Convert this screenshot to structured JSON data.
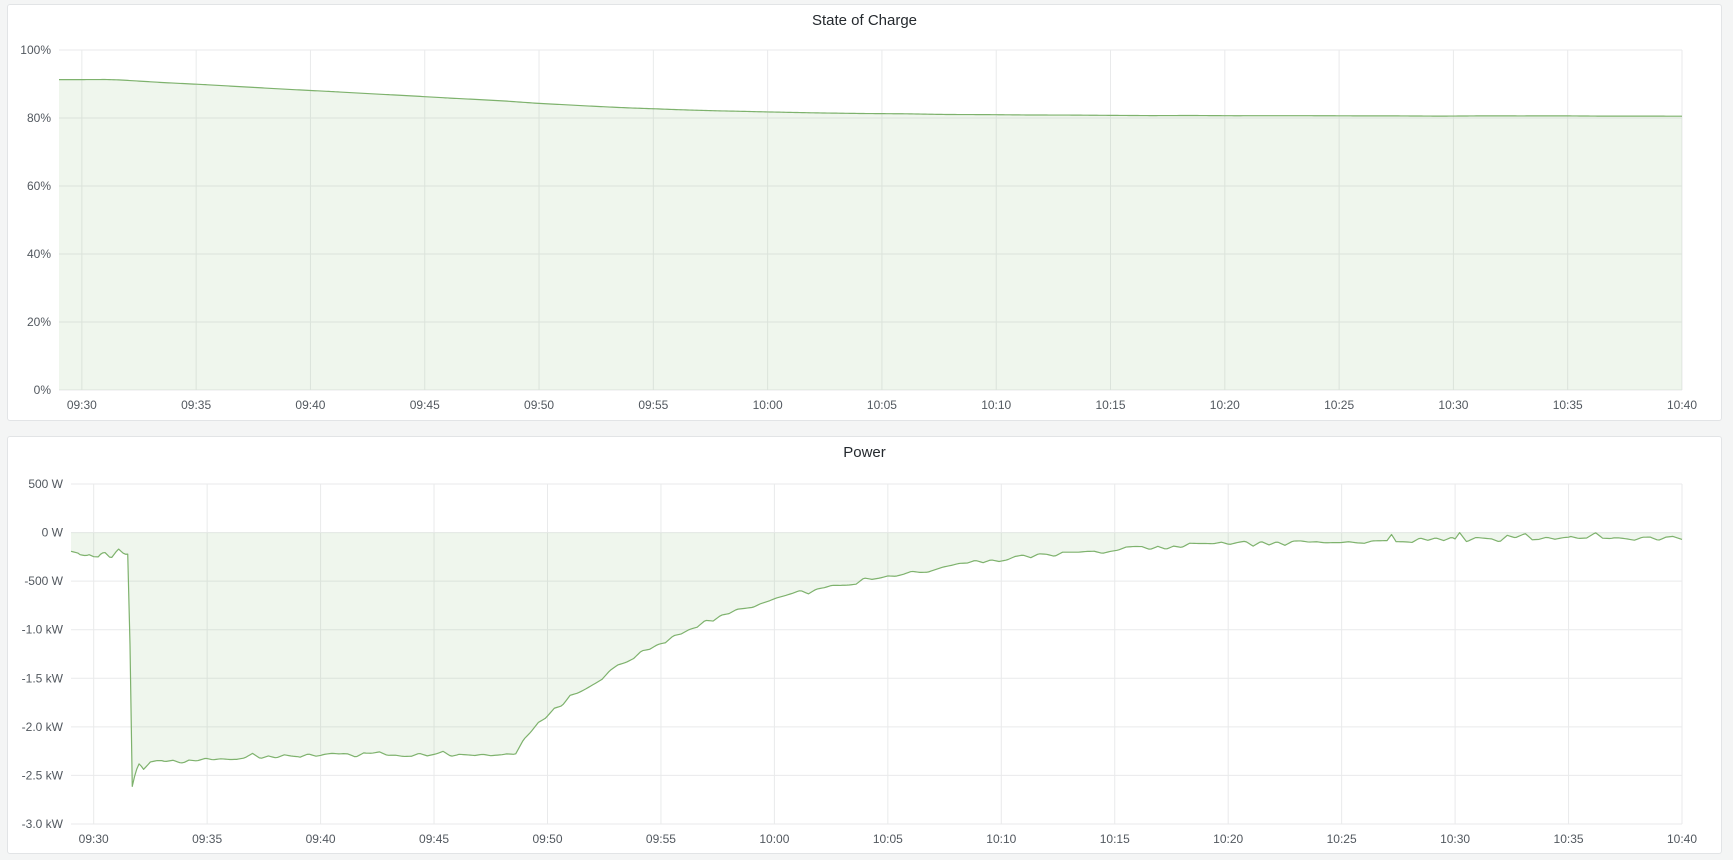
{
  "panels": [
    {
      "title": "State of Charge"
    },
    {
      "title": "Power"
    }
  ],
  "time_axis": {
    "tick_labels": [
      "09:30",
      "09:35",
      "09:40",
      "09:45",
      "09:50",
      "09:55",
      "10:00",
      "10:05",
      "10:10",
      "10:15",
      "10:20",
      "10:25",
      "10:30",
      "10:35",
      "10:40"
    ]
  },
  "colors": {
    "line_green": "#7eb26d",
    "fill_green": "rgba(126,178,109,0.12)",
    "grid": "#e9eaeb",
    "axis_text": "#52585f",
    "panel_bg": "#ffffff",
    "page_bg": "#f4f5f5"
  },
  "chart_data": [
    {
      "type": "area",
      "title": "State of Charge",
      "unit": "percent",
      "xlim_minutes": [
        -1,
        70
      ],
      "ylim": [
        0,
        100
      ],
      "grid": true,
      "legend": "none",
      "yticks": [
        {
          "value": 100,
          "label": "100%"
        },
        {
          "value": 80,
          "label": "80%"
        },
        {
          "value": 60,
          "label": "60%"
        },
        {
          "value": 40,
          "label": "40%"
        },
        {
          "value": 20,
          "label": "20%"
        },
        {
          "value": 0,
          "label": "0%"
        }
      ],
      "xticks": [
        {
          "minute": 0,
          "label": "09:30"
        },
        {
          "minute": 5,
          "label": "09:35"
        },
        {
          "minute": 10,
          "label": "09:40"
        },
        {
          "minute": 15,
          "label": "09:45"
        },
        {
          "minute": 20,
          "label": "09:50"
        },
        {
          "minute": 25,
          "label": "09:55"
        },
        {
          "minute": 30,
          "label": "10:00"
        },
        {
          "minute": 35,
          "label": "10:05"
        },
        {
          "minute": 40,
          "label": "10:10"
        },
        {
          "minute": 45,
          "label": "10:15"
        },
        {
          "minute": 50,
          "label": "10:20"
        },
        {
          "minute": 55,
          "label": "10:25"
        },
        {
          "minute": 60,
          "label": "10:30"
        },
        {
          "minute": 65,
          "label": "10:35"
        },
        {
          "minute": 70,
          "label": "10:40"
        }
      ],
      "series": [
        {
          "name": "State of Charge",
          "noise": {
            "amp": 0.05,
            "cell": 1.8
          },
          "points": [
            [
              -1,
              91.32
            ],
            [
              0,
              91.32
            ],
            [
              1,
              91.3
            ],
            [
              1.5,
              91.2
            ],
            [
              3,
              90.65
            ],
            [
              5,
              89.92
            ],
            [
              7,
              89.19
            ],
            [
              9,
              88.46
            ],
            [
              11,
              87.74
            ],
            [
              13,
              87.01
            ],
            [
              15,
              86.28
            ],
            [
              17,
              85.55
            ],
            [
              18.5,
              85.0
            ],
            [
              20,
              84.32
            ],
            [
              22,
              83.57
            ],
            [
              24,
              82.97
            ],
            [
              26,
              82.48
            ],
            [
              28,
              82.1
            ],
            [
              30,
              81.79
            ],
            [
              32,
              81.54
            ],
            [
              34,
              81.35
            ],
            [
              36,
              81.19
            ],
            [
              38,
              81.06
            ],
            [
              40,
              80.96
            ],
            [
              43,
              80.84
            ],
            [
              46,
              80.76
            ],
            [
              50,
              80.68
            ],
            [
              55,
              80.63
            ],
            [
              60,
              80.59
            ],
            [
              65,
              80.58
            ],
            [
              70,
              80.56
            ]
          ]
        }
      ]
    },
    {
      "type": "area",
      "title": "Power",
      "unit": "watt",
      "xlim_minutes": [
        -1,
        70
      ],
      "ylim": [
        -3000,
        500
      ],
      "grid": true,
      "legend": "none",
      "yticks": [
        {
          "value": 500,
          "label": "500 W"
        },
        {
          "value": 0,
          "label": "0 W"
        },
        {
          "value": -500,
          "label": "-500 W"
        },
        {
          "value": -1000,
          "label": "-1.0 kW"
        },
        {
          "value": -1500,
          "label": "-1.5 kW"
        },
        {
          "value": -2000,
          "label": "-2.0 kW"
        },
        {
          "value": -2500,
          "label": "-2.5 kW"
        },
        {
          "value": -3000,
          "label": "-3.0 kW"
        }
      ],
      "xticks": [
        {
          "minute": 0,
          "label": "09:30"
        },
        {
          "minute": 5,
          "label": "09:35"
        },
        {
          "minute": 10,
          "label": "09:40"
        },
        {
          "minute": 15,
          "label": "09:45"
        },
        {
          "minute": 20,
          "label": "09:50"
        },
        {
          "minute": 25,
          "label": "09:55"
        },
        {
          "minute": 30,
          "label": "10:00"
        },
        {
          "minute": 35,
          "label": "10:05"
        },
        {
          "minute": 40,
          "label": "10:10"
        },
        {
          "minute": 45,
          "label": "10:15"
        },
        {
          "minute": 50,
          "label": "10:20"
        },
        {
          "minute": 55,
          "label": "10:25"
        },
        {
          "minute": 60,
          "label": "10:30"
        },
        {
          "minute": 65,
          "label": "10:35"
        },
        {
          "minute": 70,
          "label": "10:40"
        }
      ],
      "series": [
        {
          "name": "Power",
          "noise": {
            "amp": 28,
            "cell": 0.35
          },
          "points": [
            [
              -1,
              -200
            ],
            [
              -0.6,
              -230
            ],
            [
              -0.2,
              -210
            ],
            [
              0.2,
              -260
            ],
            [
              0.5,
              -215
            ],
            [
              0.8,
              -250
            ],
            [
              1.1,
              -185
            ],
            [
              1.35,
              -225
            ],
            [
              1.55,
              -215
            ],
            [
              1.68,
              -2620
            ],
            [
              1.85,
              -2450
            ],
            [
              2.0,
              -2380
            ],
            [
              2.2,
              -2440
            ],
            [
              2.5,
              -2360
            ],
            [
              3,
              -2340
            ],
            [
              4,
              -2360
            ],
            [
              5,
              -2320
            ],
            [
              6,
              -2330
            ],
            [
              7,
              -2300
            ],
            [
              8,
              -2310
            ],
            [
              9,
              -2290
            ],
            [
              10,
              -2300
            ],
            [
              11,
              -2280
            ],
            [
              12,
              -2290
            ],
            [
              13,
              -2280
            ],
            [
              14,
              -2290
            ],
            [
              15,
              -2270
            ],
            [
              16,
              -2280
            ],
            [
              17,
              -2270
            ],
            [
              18,
              -2270
            ],
            [
              18.6,
              -2255
            ],
            [
              19,
              -2120
            ],
            [
              20,
              -1870
            ],
            [
              21,
              -1700
            ],
            [
              22,
              -1550
            ],
            [
              23,
              -1400
            ],
            [
              24,
              -1260
            ],
            [
              25,
              -1130
            ],
            [
              26,
              -1020
            ],
            [
              27,
              -910
            ],
            [
              28,
              -820
            ],
            [
              29,
              -750
            ],
            [
              30,
              -690
            ],
            [
              31,
              -630
            ],
            [
              32,
              -580
            ],
            [
              33,
              -530
            ],
            [
              34,
              -490
            ],
            [
              35,
              -450
            ],
            [
              36,
              -410
            ],
            [
              37,
              -375
            ],
            [
              38,
              -340
            ],
            [
              39,
              -305
            ],
            [
              40,
              -275
            ],
            [
              41,
              -250
            ],
            [
              42,
              -230
            ],
            [
              43,
              -210
            ],
            [
              44,
              -195
            ],
            [
              45,
              -180
            ],
            [
              46,
              -165
            ],
            [
              47,
              -150
            ],
            [
              48,
              -140
            ],
            [
              49,
              -130
            ],
            [
              50,
              -120
            ],
            [
              51,
              -115
            ],
            [
              52,
              -110
            ],
            [
              53,
              -105
            ],
            [
              54,
              -100
            ],
            [
              55,
              -95
            ],
            [
              56,
              -90
            ],
            [
              57,
              -85
            ],
            [
              57.2,
              -20
            ],
            [
              57.4,
              -90
            ],
            [
              58,
              -80
            ],
            [
              59,
              -75
            ],
            [
              60,
              -70
            ],
            [
              60.2,
              20
            ],
            [
              60.5,
              -80
            ],
            [
              61,
              -65
            ],
            [
              62,
              -70
            ],
            [
              63.1,
              -10
            ],
            [
              63.4,
              -75
            ],
            [
              64,
              -60
            ],
            [
              65,
              -65
            ],
            [
              66.2,
              -15
            ],
            [
              66.5,
              -75
            ],
            [
              67,
              -55
            ],
            [
              68,
              -60
            ],
            [
              69,
              -55
            ],
            [
              69.6,
              -30
            ],
            [
              70,
              -60
            ]
          ]
        }
      ]
    }
  ]
}
